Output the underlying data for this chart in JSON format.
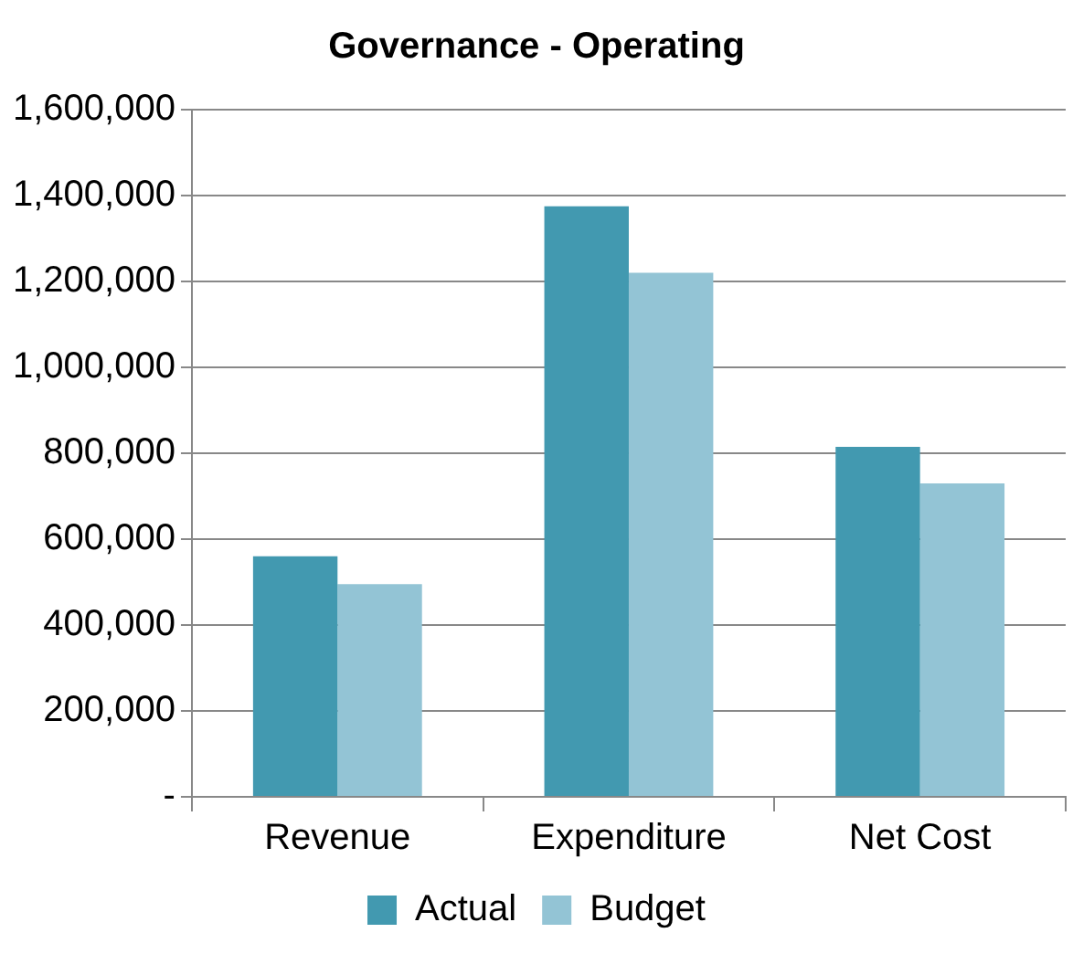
{
  "chart_data": {
    "type": "bar",
    "title": "Governance - Operating",
    "categories": [
      "Revenue",
      "Expenditure",
      "Net Cost"
    ],
    "series": [
      {
        "name": "Actual",
        "color": "#4299b0",
        "values": [
          560000,
          1375000,
          815000
        ]
      },
      {
        "name": "Budget",
        "color": "#93c4d5",
        "values": [
          495000,
          1220000,
          730000
        ]
      }
    ],
    "ylim": [
      0,
      1600000
    ],
    "yticks": [
      {
        "value": 0,
        "label": "-"
      },
      {
        "value": 200000,
        "label": "200,000"
      },
      {
        "value": 400000,
        "label": "400,000"
      },
      {
        "value": 600000,
        "label": "600,000"
      },
      {
        "value": 800000,
        "label": "800,000"
      },
      {
        "value": 1000000,
        "label": "1,000,000"
      },
      {
        "value": 1200000,
        "label": "1,200,000"
      },
      {
        "value": 1400000,
        "label": "1,400,000"
      },
      {
        "value": 1600000,
        "label": "1,600,000"
      }
    ],
    "grid": "y",
    "legend": "bottom"
  }
}
